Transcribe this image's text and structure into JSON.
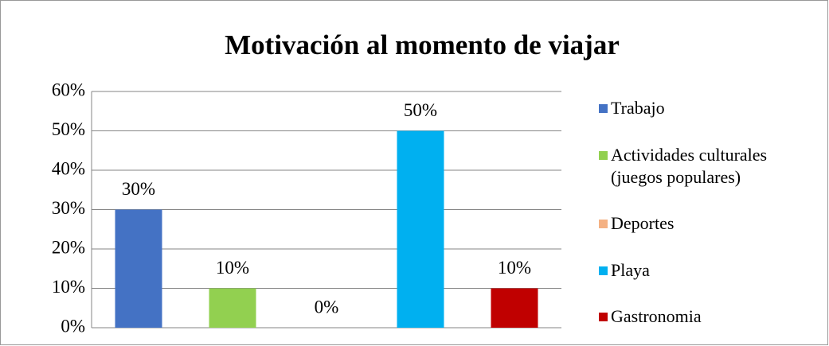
{
  "chart_data": {
    "type": "bar",
    "title": "Motivación al momento de viajar",
    "categories": [
      "Trabajo",
      "Actividades culturales (juegos populares)",
      "Deportes",
      "Playa",
      "Gastronomia"
    ],
    "values": [
      30,
      10,
      0,
      50,
      10
    ],
    "value_labels": [
      "30%",
      "10%",
      "0%",
      "50%",
      "10%"
    ],
    "colors": [
      "#4472c4",
      "#92d050",
      "#f4b183",
      "#00b0f0",
      "#c00000"
    ],
    "ylim": [
      0,
      60
    ],
    "yticks": [
      {
        "value": 0,
        "label": "0%"
      },
      {
        "value": 10,
        "label": "10%"
      },
      {
        "value": 20,
        "label": "20%"
      },
      {
        "value": 30,
        "label": "30%"
      },
      {
        "value": 40,
        "label": "40%"
      },
      {
        "value": 50,
        "label": "50%"
      },
      {
        "value": 60,
        "label": "60%"
      }
    ],
    "grid": true,
    "legend": "right"
  }
}
